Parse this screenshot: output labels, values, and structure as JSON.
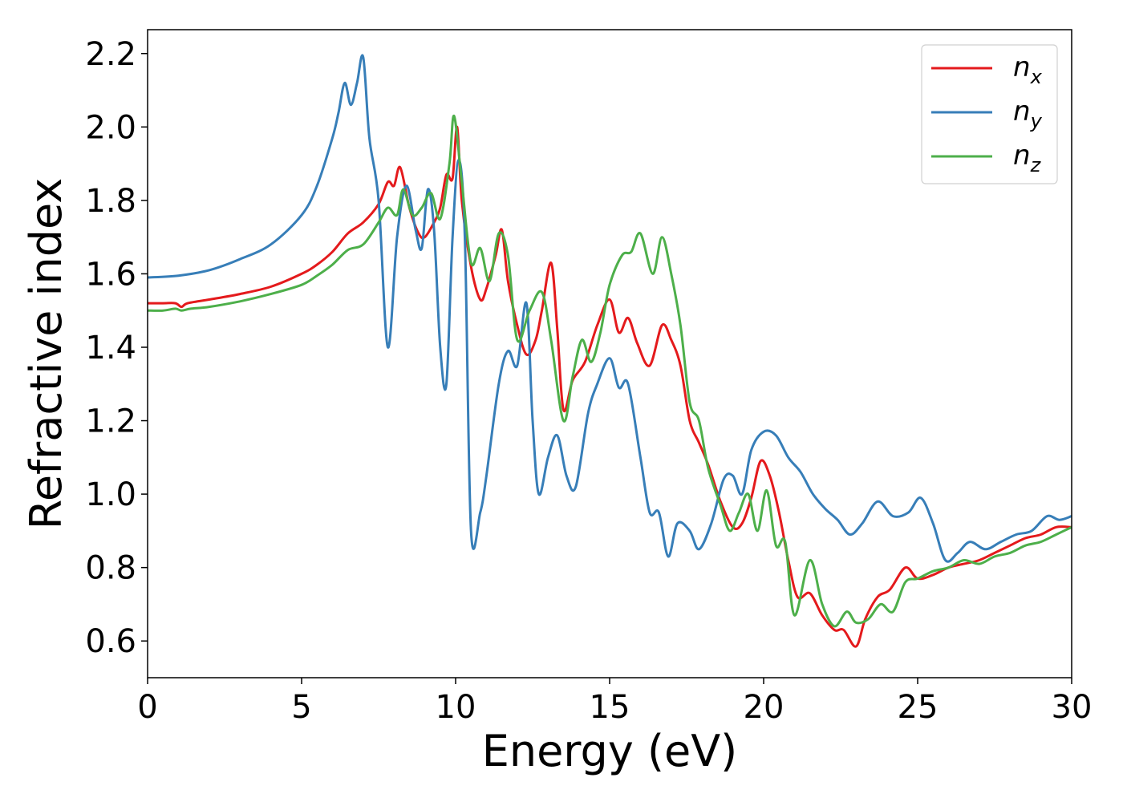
{
  "chart_data": {
    "type": "line",
    "title": "",
    "xlabel": "Energy (eV)",
    "ylabel": "Refractive index",
    "xlim": [
      0,
      30
    ],
    "ylim": [
      0.5,
      2.265
    ],
    "xticks": [
      0,
      5,
      10,
      15,
      20,
      25,
      30
    ],
    "yticks": [
      0.6,
      0.8,
      1.0,
      1.2,
      1.4,
      1.6,
      1.8,
      2.0,
      2.2
    ],
    "xtick_labels": [
      "0",
      "5",
      "10",
      "15",
      "20",
      "25",
      "30"
    ],
    "ytick_labels": [
      "0.6",
      "0.8",
      "1.0",
      "1.2",
      "1.4",
      "1.6",
      "1.8",
      "2.0",
      "2.2"
    ],
    "grid": false,
    "legend": {
      "position": "top-right"
    },
    "series": [
      {
        "name": "n",
        "subscript": "x",
        "color": "#e41a1c",
        "points": [
          [
            0,
            1.52
          ],
          [
            0.5,
            1.52
          ],
          [
            0.9,
            1.52
          ],
          [
            1.1,
            1.51
          ],
          [
            1.3,
            1.52
          ],
          [
            2,
            1.53
          ],
          [
            3,
            1.545
          ],
          [
            4,
            1.565
          ],
          [
            5,
            1.6
          ],
          [
            5.5,
            1.625
          ],
          [
            6,
            1.66
          ],
          [
            6.5,
            1.71
          ],
          [
            7,
            1.74
          ],
          [
            7.5,
            1.79
          ],
          [
            7.8,
            1.85
          ],
          [
            8,
            1.84
          ],
          [
            8.2,
            1.89
          ],
          [
            8.5,
            1.78
          ],
          [
            8.8,
            1.71
          ],
          [
            9,
            1.7
          ],
          [
            9.3,
            1.74
          ],
          [
            9.5,
            1.78
          ],
          [
            9.7,
            1.87
          ],
          [
            9.9,
            1.86
          ],
          [
            10.05,
            2.0
          ],
          [
            10.2,
            1.8
          ],
          [
            10.5,
            1.62
          ],
          [
            10.8,
            1.53
          ],
          [
            11,
            1.56
          ],
          [
            11.3,
            1.65
          ],
          [
            11.5,
            1.72
          ],
          [
            11.7,
            1.58
          ],
          [
            12,
            1.46
          ],
          [
            12.3,
            1.38
          ],
          [
            12.6,
            1.42
          ],
          [
            12.8,
            1.5
          ],
          [
            13.1,
            1.63
          ],
          [
            13.3,
            1.45
          ],
          [
            13.5,
            1.23
          ],
          [
            13.8,
            1.31
          ],
          [
            14.2,
            1.36
          ],
          [
            14.6,
            1.46
          ],
          [
            15,
            1.53
          ],
          [
            15.3,
            1.44
          ],
          [
            15.6,
            1.48
          ],
          [
            15.9,
            1.41
          ],
          [
            16.3,
            1.35
          ],
          [
            16.7,
            1.46
          ],
          [
            17,
            1.42
          ],
          [
            17.3,
            1.35
          ],
          [
            17.6,
            1.2
          ],
          [
            17.9,
            1.14
          ],
          [
            18.2,
            1.08
          ],
          [
            18.6,
            0.98
          ],
          [
            19,
            0.91
          ],
          [
            19.3,
            0.92
          ],
          [
            19.6,
            0.99
          ],
          [
            19.9,
            1.09
          ],
          [
            20.2,
            1.05
          ],
          [
            20.5,
            0.95
          ],
          [
            20.8,
            0.82
          ],
          [
            21.1,
            0.72
          ],
          [
            21.5,
            0.73
          ],
          [
            21.9,
            0.67
          ],
          [
            22.3,
            0.63
          ],
          [
            22.6,
            0.63
          ],
          [
            23,
            0.585
          ],
          [
            23.3,
            0.66
          ],
          [
            23.7,
            0.72
          ],
          [
            24.1,
            0.74
          ],
          [
            24.6,
            0.8
          ],
          [
            25,
            0.77
          ],
          [
            25.5,
            0.78
          ],
          [
            26,
            0.8
          ],
          [
            26.5,
            0.81
          ],
          [
            27,
            0.82
          ],
          [
            27.5,
            0.84
          ],
          [
            28,
            0.86
          ],
          [
            28.5,
            0.88
          ],
          [
            29,
            0.89
          ],
          [
            29.5,
            0.91
          ],
          [
            30,
            0.91
          ]
        ]
      },
      {
        "name": "n",
        "subscript": "y",
        "color": "#377eb8",
        "points": [
          [
            0,
            1.59
          ],
          [
            1,
            1.595
          ],
          [
            2,
            1.61
          ],
          [
            3,
            1.64
          ],
          [
            4,
            1.68
          ],
          [
            5,
            1.76
          ],
          [
            5.5,
            1.84
          ],
          [
            6,
            1.97
          ],
          [
            6.2,
            2.04
          ],
          [
            6.4,
            2.12
          ],
          [
            6.6,
            2.06
          ],
          [
            6.8,
            2.12
          ],
          [
            7,
            2.19
          ],
          [
            7.2,
            1.97
          ],
          [
            7.5,
            1.8
          ],
          [
            7.8,
            1.4
          ],
          [
            8.1,
            1.7
          ],
          [
            8.4,
            1.84
          ],
          [
            8.7,
            1.72
          ],
          [
            8.9,
            1.67
          ],
          [
            9.1,
            1.83
          ],
          [
            9.3,
            1.72
          ],
          [
            9.5,
            1.4
          ],
          [
            9.7,
            1.3
          ],
          [
            9.9,
            1.7
          ],
          [
            10.1,
            1.91
          ],
          [
            10.3,
            1.7
          ],
          [
            10.5,
            0.9
          ],
          [
            10.8,
            0.95
          ],
          [
            11,
            1.05
          ],
          [
            11.4,
            1.3
          ],
          [
            11.7,
            1.39
          ],
          [
            12,
            1.35
          ],
          [
            12.3,
            1.52
          ],
          [
            12.5,
            1.2
          ],
          [
            12.7,
            1.0
          ],
          [
            13,
            1.1
          ],
          [
            13.3,
            1.16
          ],
          [
            13.6,
            1.05
          ],
          [
            13.9,
            1.02
          ],
          [
            14.3,
            1.22
          ],
          [
            14.6,
            1.3
          ],
          [
            15,
            1.37
          ],
          [
            15.3,
            1.29
          ],
          [
            15.6,
            1.3
          ],
          [
            16,
            1.1
          ],
          [
            16.3,
            0.95
          ],
          [
            16.6,
            0.95
          ],
          [
            16.9,
            0.83
          ],
          [
            17.2,
            0.92
          ],
          [
            17.6,
            0.9
          ],
          [
            17.9,
            0.85
          ],
          [
            18.3,
            0.92
          ],
          [
            18.7,
            1.04
          ],
          [
            19,
            1.05
          ],
          [
            19.3,
            1.0
          ],
          [
            19.6,
            1.12
          ],
          [
            20,
            1.17
          ],
          [
            20.4,
            1.16
          ],
          [
            20.8,
            1.1
          ],
          [
            21.2,
            1.06
          ],
          [
            21.6,
            1.0
          ],
          [
            22,
            0.96
          ],
          [
            22.4,
            0.93
          ],
          [
            22.8,
            0.89
          ],
          [
            23.2,
            0.92
          ],
          [
            23.7,
            0.98
          ],
          [
            24.2,
            0.94
          ],
          [
            24.7,
            0.95
          ],
          [
            25.1,
            0.99
          ],
          [
            25.5,
            0.92
          ],
          [
            25.9,
            0.82
          ],
          [
            26.3,
            0.84
          ],
          [
            26.7,
            0.87
          ],
          [
            27.2,
            0.85
          ],
          [
            27.7,
            0.87
          ],
          [
            28.2,
            0.89
          ],
          [
            28.7,
            0.9
          ],
          [
            29.2,
            0.94
          ],
          [
            29.6,
            0.93
          ],
          [
            30,
            0.94
          ]
        ]
      },
      {
        "name": "n",
        "subscript": "z",
        "color": "#4daf4a",
        "points": [
          [
            0,
            1.5
          ],
          [
            0.5,
            1.5
          ],
          [
            0.9,
            1.505
          ],
          [
            1.1,
            1.5
          ],
          [
            1.4,
            1.505
          ],
          [
            2,
            1.51
          ],
          [
            3,
            1.525
          ],
          [
            4,
            1.545
          ],
          [
            5,
            1.57
          ],
          [
            5.5,
            1.595
          ],
          [
            6,
            1.625
          ],
          [
            6.5,
            1.665
          ],
          [
            7,
            1.68
          ],
          [
            7.5,
            1.74
          ],
          [
            7.8,
            1.78
          ],
          [
            8.1,
            1.76
          ],
          [
            8.3,
            1.83
          ],
          [
            8.6,
            1.76
          ],
          [
            8.9,
            1.78
          ],
          [
            9.2,
            1.82
          ],
          [
            9.5,
            1.75
          ],
          [
            9.8,
            1.9
          ],
          [
            9.95,
            2.03
          ],
          [
            10.2,
            1.85
          ],
          [
            10.5,
            1.63
          ],
          [
            10.8,
            1.67
          ],
          [
            11.1,
            1.58
          ],
          [
            11.4,
            1.71
          ],
          [
            11.7,
            1.65
          ],
          [
            12,
            1.42
          ],
          [
            12.4,
            1.5
          ],
          [
            12.8,
            1.55
          ],
          [
            13.1,
            1.42
          ],
          [
            13.5,
            1.2
          ],
          [
            13.8,
            1.32
          ],
          [
            14.1,
            1.42
          ],
          [
            14.4,
            1.36
          ],
          [
            14.7,
            1.44
          ],
          [
            15,
            1.57
          ],
          [
            15.4,
            1.65
          ],
          [
            15.7,
            1.66
          ],
          [
            16,
            1.71
          ],
          [
            16.4,
            1.6
          ],
          [
            16.7,
            1.7
          ],
          [
            17,
            1.6
          ],
          [
            17.3,
            1.46
          ],
          [
            17.6,
            1.25
          ],
          [
            17.9,
            1.2
          ],
          [
            18.2,
            1.07
          ],
          [
            18.6,
            0.97
          ],
          [
            18.9,
            0.9
          ],
          [
            19.2,
            0.95
          ],
          [
            19.5,
            1.0
          ],
          [
            19.8,
            0.9
          ],
          [
            20.1,
            1.01
          ],
          [
            20.4,
            0.86
          ],
          [
            20.7,
            0.87
          ],
          [
            21,
            0.67
          ],
          [
            21.5,
            0.82
          ],
          [
            21.9,
            0.7
          ],
          [
            22.3,
            0.64
          ],
          [
            22.7,
            0.68
          ],
          [
            23,
            0.65
          ],
          [
            23.4,
            0.66
          ],
          [
            23.8,
            0.7
          ],
          [
            24.2,
            0.68
          ],
          [
            24.6,
            0.76
          ],
          [
            25,
            0.77
          ],
          [
            25.5,
            0.79
          ],
          [
            26,
            0.8
          ],
          [
            26.5,
            0.82
          ],
          [
            27,
            0.81
          ],
          [
            27.5,
            0.83
          ],
          [
            28,
            0.84
          ],
          [
            28.5,
            0.86
          ],
          [
            29,
            0.87
          ],
          [
            29.5,
            0.89
          ],
          [
            30,
            0.91
          ]
        ]
      }
    ]
  }
}
